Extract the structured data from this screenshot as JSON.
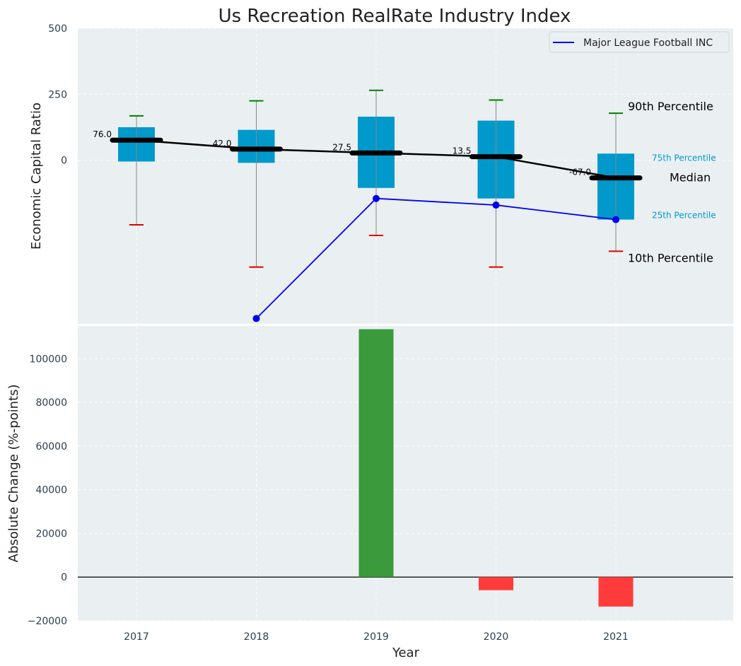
{
  "chart_data": [
    {
      "type": "box",
      "title": "Us Recreation RealRate Industry Index",
      "xlabel": "",
      "ylabel": "Economic Capital Ratio",
      "ylim": [
        -620,
        500
      ],
      "yticks": [
        500,
        250,
        0
      ],
      "categories": [
        "2017",
        "2018",
        "2019",
        "2020",
        "2021"
      ],
      "boxes": [
        {
          "p10": -245,
          "p25": -5,
          "median": 76.0,
          "p75": 125,
          "p90": 168
        },
        {
          "p10": -405,
          "p25": -10,
          "median": 42.0,
          "p75": 115,
          "p90": 225
        },
        {
          "p10": -285,
          "p25": -105,
          "median": 27.5,
          "p75": 165,
          "p90": 265
        },
        {
          "p10": -405,
          "p25": -145,
          "median": 13.5,
          "p75": 150,
          "p90": 228
        },
        {
          "p10": -345,
          "p25": -225,
          "median": -67.0,
          "p75": 25,
          "p90": 178
        }
      ],
      "median_labels": [
        "76.0",
        "42.0",
        "27.5",
        "13.5",
        "-67.0"
      ],
      "series": [
        {
          "name": "Major League Football INC",
          "values": [
            null,
            -600,
            -145,
            -170,
            -225
          ],
          "color": "#0000ee"
        }
      ],
      "annotations": {
        "p90": "90th Percentile",
        "p75": "75th Percentile",
        "median": "Median",
        "p25": "25th Percentile",
        "p10": "10th Percentile"
      },
      "legend": "top-right",
      "grid": true,
      "colors": {
        "box": "#0099cc",
        "median": "#000000",
        "whisker_top": "#008000",
        "whisker_bottom": "#e00000",
        "whisker": "#888888",
        "background": "#eaeff1"
      }
    },
    {
      "type": "bar",
      "title": "",
      "xlabel": "Year",
      "ylabel": "Absolute Change (%-points)",
      "ylim": [
        -20000,
        115000
      ],
      "yticks": [
        -20000,
        0,
        20000,
        40000,
        60000,
        80000,
        100000
      ],
      "ytick_labels": [
        "−20000",
        "0",
        "20000",
        "40000",
        "60000",
        "80000",
        "100000"
      ],
      "categories": [
        "2017",
        "2018",
        "2019",
        "2020",
        "2021"
      ],
      "values": [
        null,
        null,
        113500,
        -6000,
        -13500
      ],
      "grid": true,
      "colors": {
        "positive": "#3a9a3c",
        "negative": "#ff3b3b",
        "background": "#eaeff1"
      }
    }
  ]
}
